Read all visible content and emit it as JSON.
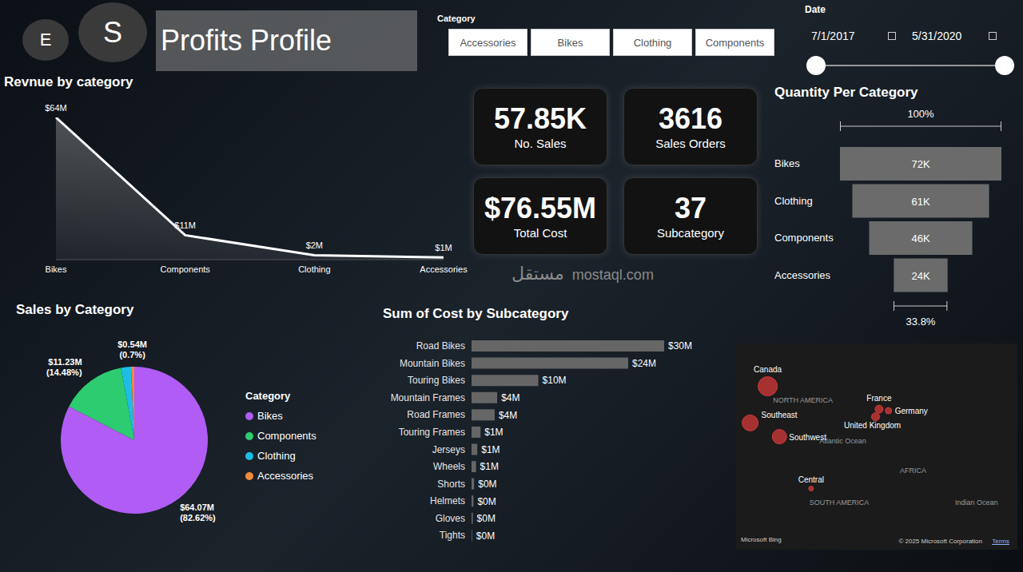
{
  "header": {
    "badges": [
      "E",
      "S"
    ],
    "title": "Profits Profile"
  },
  "filters": {
    "category": {
      "label": "Category",
      "options": [
        "Accessories",
        "Bikes",
        "Clothing",
        "Components"
      ]
    },
    "date": {
      "label": "Date",
      "start": "7/1/2017",
      "end": "5/31/2020"
    }
  },
  "kpis": [
    {
      "value": "57.85K",
      "label": "No. Sales"
    },
    {
      "value": "3616",
      "label": "Sales Orders"
    },
    {
      "value": "$76.55M",
      "label": "Total Cost"
    },
    {
      "value": "37",
      "label": "Subcategory"
    }
  ],
  "chart_data": [
    {
      "type": "area",
      "title": "Revnue by category",
      "categories": [
        "Bikes",
        "Components",
        "Clothing",
        "Accessories"
      ],
      "values": [
        64,
        11,
        2,
        1
      ],
      "value_labels": [
        "$64M",
        "$11M",
        "$2M",
        "$1M"
      ],
      "data_labels": true,
      "ylim": [
        0,
        64
      ],
      "tick_labels": "x",
      "color": "#ffffff"
    },
    {
      "type": "funnel",
      "title": "Quantity Per Category",
      "categories": [
        "Bikes",
        "Clothing",
        "Components",
        "Accessories"
      ],
      "values": [
        72,
        61,
        46,
        24
      ],
      "value_labels": [
        "72K",
        "61K",
        "46K",
        "24K"
      ],
      "data_labels": true,
      "orientation": "horizontal",
      "xlim": [
        0,
        72
      ],
      "tick_labels": "y",
      "color": "#6b6b6b",
      "annotations": [
        "100%",
        "33.8%"
      ]
    },
    {
      "type": "pie",
      "title": "Sales by Category",
      "categories": [
        "Bikes",
        "Components",
        "Clothing",
        "Accessories"
      ],
      "values": [
        64.07,
        11.23,
        1.71,
        0.54
      ],
      "value_labels": [
        "$64.07M (82.62%)",
        "$11.23M (14.48%)",
        null,
        "$0.54M (0.7%)"
      ],
      "colors": [
        "#b05cf5",
        "#2ecc71",
        "#1ebde6",
        "#f28a3c"
      ],
      "data_labels": true,
      "legend": "right",
      "legend_title": "Category"
    },
    {
      "type": "bar",
      "title": "Sum of Cost by Subcategory",
      "orientation": "horizontal",
      "categories": [
        "Road Bikes",
        "Mountain Bikes",
        "Touring Bikes",
        "Mountain Frames",
        "Road Frames",
        "Touring Frames",
        "Jerseys",
        "Wheels",
        "Shorts",
        "Helmets",
        "Gloves",
        "Tights"
      ],
      "values": [
        30,
        24.4,
        10.4,
        4,
        3.6,
        1.4,
        0.9,
        0.7,
        0.4,
        0.3,
        0.2,
        0.1
      ],
      "value_labels": [
        "$30M",
        "$24M",
        "$10M",
        "$4M",
        "$4M",
        "$1M",
        "$1M",
        "$1M",
        "$0M",
        "$0M",
        "$0M",
        "$0M"
      ],
      "data_labels": true,
      "xlim": [
        0,
        30
      ],
      "tick_labels": "y",
      "color": "#666666"
    },
    {
      "type": "map",
      "points": [
        {
          "name": "Canada",
          "lon": -113,
          "lat": 47,
          "size": 144
        },
        {
          "name": "Southeast",
          "lon": -128,
          "lat": 23,
          "size": 100
        },
        {
          "name": "Southwest",
          "lon": -103,
          "lat": 14,
          "size": 81
        },
        {
          "name": "France",
          "lon": -18,
          "lat": 32,
          "size": 25
        },
        {
          "name": "Germany",
          "lon": -10,
          "lat": 31,
          "size": 16
        },
        {
          "name": "United Kingdom",
          "lon": -21,
          "lat": 27,
          "size": 25
        },
        {
          "name": "Central",
          "lon": -76,
          "lat": -20,
          "size": 9
        }
      ],
      "labels": [
        {
          "text": "NORTH AMERICA",
          "lon": -83,
          "lat": 38
        },
        {
          "text": "Atlantic Ocean",
          "lon": -49,
          "lat": 11
        },
        {
          "text": "AFRICA",
          "lon": 11,
          "lat": -8
        },
        {
          "text": "SOUTH AMERICA",
          "lon": -52,
          "lat": -29
        },
        {
          "text": "Indian Ocean",
          "lon": 65,
          "lat": -29
        }
      ],
      "xlim": [
        -140,
        100
      ],
      "ylim": [
        -60,
        75
      ],
      "size_lim": [
        0,
        144
      ],
      "tick_labels": false,
      "color": "#d43a3a",
      "attribution": [
        "Microsoft Bing",
        "© 2025 Microsoft Corporation",
        "Terms"
      ]
    }
  ],
  "watermark": [
    "مستقل",
    "mostaql.com"
  ]
}
